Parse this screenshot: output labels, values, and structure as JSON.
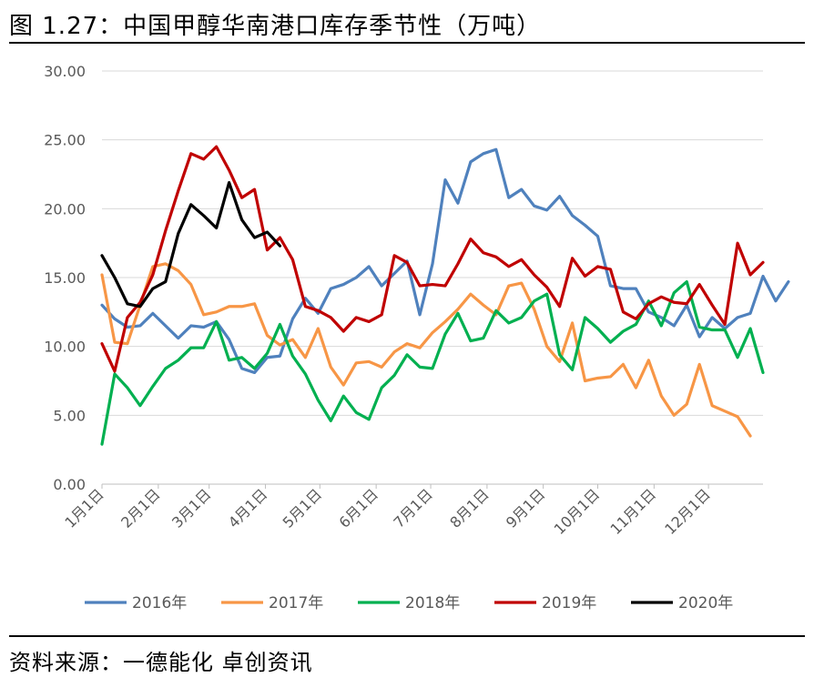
{
  "header": {
    "title": "图 1.27：中国甲醇华南港口库存季节性（万吨）"
  },
  "footer": {
    "source": "资料来源：一德能化 卓创资讯"
  },
  "chart_data": {
    "type": "line",
    "title": "",
    "xlabel": "",
    "ylabel": "",
    "ylim": [
      0,
      30
    ],
    "yticks": [
      "0.00",
      "5.00",
      "10.00",
      "15.00",
      "20.00",
      "25.00",
      "30.00"
    ],
    "xlim": [
      0,
      52
    ],
    "xticks": [
      {
        "label": "1月1日",
        "x": 0
      },
      {
        "label": "2月1日",
        "x": 4.43
      },
      {
        "label": "3月1日",
        "x": 8.43
      },
      {
        "label": "4月1日",
        "x": 12.86
      },
      {
        "label": "5月1日",
        "x": 17.14
      },
      {
        "label": "6月1日",
        "x": 21.57
      },
      {
        "label": "7月1日",
        "x": 25.86
      },
      {
        "label": "8月1日",
        "x": 30.29
      },
      {
        "label": "9月1日",
        "x": 34.71
      },
      {
        "label": "10月1日",
        "x": 39
      },
      {
        "label": "11月1日",
        "x": 43.43
      },
      {
        "label": "12月1日",
        "x": 47.71
      }
    ],
    "grid": true,
    "legend_position": "bottom",
    "series": [
      {
        "name": "2016年",
        "color": "#4f81bd",
        "values": [
          13.0,
          12.0,
          11.4,
          11.5,
          12.4,
          11.5,
          10.6,
          11.5,
          11.4,
          11.8,
          10.5,
          8.4,
          8.1,
          9.2,
          9.3,
          12.0,
          13.5,
          12.4,
          14.2,
          14.5,
          15.0,
          15.8,
          14.4,
          15.3,
          16.2,
          12.3,
          16.0,
          22.1,
          20.4,
          23.4,
          24.0,
          24.3,
          20.8,
          21.4,
          20.2,
          19.9,
          20.9,
          19.5,
          18.8,
          18.0,
          14.4,
          14.2,
          14.2,
          12.5,
          12.1,
          11.5,
          13.0,
          10.7,
          12.1,
          11.3,
          12.1,
          12.4,
          15.1,
          13.3,
          14.7
        ]
      },
      {
        "name": "2017年",
        "color": "#f79646",
        "values": [
          15.2,
          10.3,
          10.2,
          13.0,
          15.8,
          16.0,
          15.5,
          14.5,
          12.3,
          12.5,
          12.9,
          12.9,
          13.1,
          10.8,
          10.1,
          10.5,
          9.2,
          11.3,
          8.5,
          7.2,
          8.8,
          8.9,
          8.5,
          9.6,
          10.2,
          9.9,
          11.0,
          11.8,
          12.7,
          13.8,
          13.0,
          12.3,
          14.4,
          14.6,
          12.7,
          10.0,
          8.9,
          11.7,
          7.5,
          7.7,
          7.8,
          8.7,
          7.0,
          9.0,
          6.4,
          5.0,
          5.8,
          8.7,
          5.7,
          5.3,
          4.9,
          3.5
        ]
      },
      {
        "name": "2018年",
        "color": "#00b050",
        "values": [
          2.9,
          8.0,
          7.0,
          5.7,
          7.1,
          8.4,
          9.0,
          9.9,
          9.9,
          11.8,
          9.0,
          9.2,
          8.4,
          9.5,
          11.6,
          9.3,
          8.0,
          6.1,
          4.6,
          6.4,
          5.2,
          4.7,
          7.0,
          7.9,
          9.4,
          8.5,
          8.4,
          10.9,
          12.4,
          10.4,
          10.6,
          12.6,
          11.7,
          12.1,
          13.3,
          13.8,
          9.4,
          8.3,
          12.1,
          11.3,
          10.3,
          11.1,
          11.6,
          13.3,
          11.5,
          13.9,
          14.7,
          11.4,
          11.2,
          11.2,
          9.2,
          11.3,
          8.1
        ]
      },
      {
        "name": "2019年",
        "color": "#c00000",
        "values": [
          10.2,
          8.2,
          12.1,
          13.2,
          15.2,
          18.4,
          21.3,
          24.0,
          23.6,
          24.5,
          22.8,
          20.8,
          21.4,
          17.0,
          17.9,
          16.3,
          12.9,
          12.6,
          12.1,
          11.1,
          12.1,
          11.8,
          12.3,
          16.6,
          16.1,
          14.4,
          14.5,
          14.4,
          16.0,
          17.8,
          16.8,
          16.5,
          15.8,
          16.3,
          15.2,
          14.3,
          12.9,
          16.4,
          15.1,
          15.8,
          15.6,
          12.5,
          12.0,
          13.1,
          13.6,
          13.2,
          13.1,
          14.5,
          13.0,
          11.6,
          17.5,
          15.2,
          16.1
        ]
      },
      {
        "name": "2020年",
        "color": "#000000",
        "values": [
          16.6,
          15.0,
          13.1,
          12.9,
          14.2,
          14.7,
          18.2,
          20.3,
          19.5,
          18.6,
          21.9,
          19.2,
          17.9,
          18.3,
          17.3
        ]
      }
    ]
  }
}
